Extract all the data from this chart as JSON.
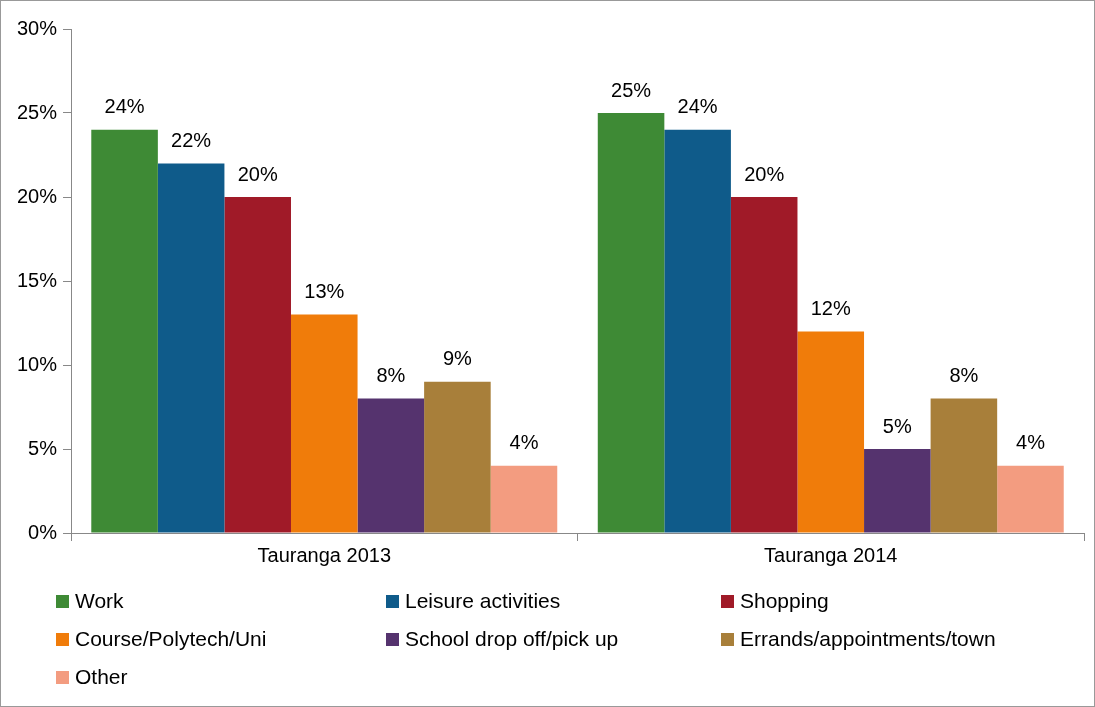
{
  "chart_data": {
    "type": "bar",
    "categories": [
      "Tauranga 2013",
      "Tauranga 2014"
    ],
    "series": [
      {
        "name": "Work",
        "color": "#3e8a35",
        "values": [
          24,
          25
        ],
        "value_labels": [
          "24%",
          "25%"
        ]
      },
      {
        "name": "Leisure activities",
        "color": "#0f5b8a",
        "values": [
          22,
          24
        ],
        "value_labels": [
          "22%",
          "24%"
        ]
      },
      {
        "name": "Shopping",
        "color": "#a01a28",
        "values": [
          20,
          20
        ],
        "value_labels": [
          "20%",
          "20%"
        ]
      },
      {
        "name": "Course/Polytech/Uni",
        "color": "#f07c0a",
        "values": [
          13,
          12
        ],
        "value_labels": [
          "13%",
          "12%"
        ]
      },
      {
        "name": "School drop off/pick up",
        "color": "#55336e",
        "values": [
          8,
          5
        ],
        "value_labels": [
          "8%",
          "5%"
        ]
      },
      {
        "name": "Errands/appointments/town",
        "color": "#a87f3a",
        "values": [
          9,
          8
        ],
        "value_labels": [
          "9%",
          "8%"
        ]
      },
      {
        "name": "Other",
        "color": "#f39c80",
        "values": [
          4,
          4
        ],
        "value_labels": [
          "4%",
          "4%"
        ]
      }
    ],
    "ylim": [
      0,
      30
    ],
    "yticks": [
      {
        "value": 0,
        "label": "0%"
      },
      {
        "value": 5,
        "label": "5%"
      },
      {
        "value": 10,
        "label": "10%"
      },
      {
        "value": 15,
        "label": "15%"
      },
      {
        "value": 20,
        "label": "20%"
      },
      {
        "value": 25,
        "label": "25%"
      },
      {
        "value": 30,
        "label": "30%"
      }
    ],
    "grid": false,
    "legend": "bottom"
  }
}
